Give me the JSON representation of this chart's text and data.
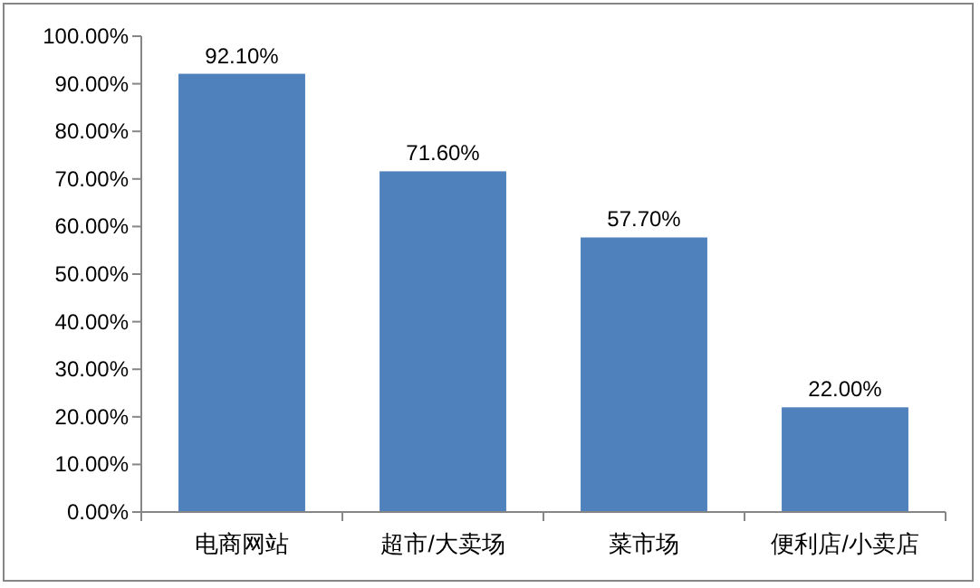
{
  "chart_data": {
    "type": "bar",
    "categories": [
      "电商网站",
      "超市/大卖场",
      "菜市场",
      "便利店/小卖店"
    ],
    "values": [
      92.1,
      71.6,
      57.7,
      22.0
    ],
    "value_labels": [
      "92.10%",
      "71.60%",
      "57.70%",
      "22.00%"
    ],
    "color": "#4f81bd",
    "ylim": [
      0,
      100
    ],
    "yticks": [
      {
        "value": 0,
        "label": "0.00%"
      },
      {
        "value": 10,
        "label": "10.00%"
      },
      {
        "value": 20,
        "label": "20.00%"
      },
      {
        "value": 30,
        "label": "30.00%"
      },
      {
        "value": 40,
        "label": "40.00%"
      },
      {
        "value": 50,
        "label": "50.00%"
      },
      {
        "value": 60,
        "label": "60.00%"
      },
      {
        "value": 70,
        "label": "70.00%"
      },
      {
        "value": 80,
        "label": "80.00%"
      },
      {
        "value": 90,
        "label": "90.00%"
      },
      {
        "value": 100,
        "label": "100.00%"
      }
    ]
  }
}
